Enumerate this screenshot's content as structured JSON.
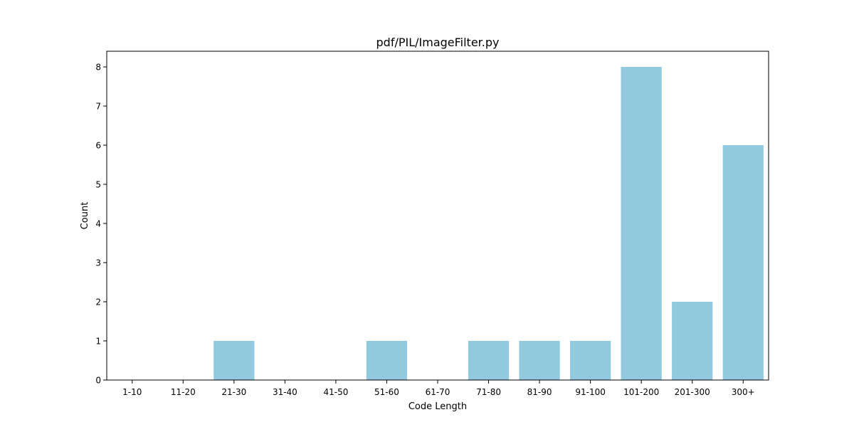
{
  "chart_data": {
    "type": "bar",
    "title": "pdf/PIL/ImageFilter.py",
    "xlabel": "Code Length",
    "ylabel": "Count",
    "categories": [
      "1-10",
      "11-20",
      "21-30",
      "31-40",
      "41-50",
      "51-60",
      "61-70",
      "71-80",
      "81-90",
      "91-100",
      "101-200",
      "201-300",
      "300+"
    ],
    "values": [
      0,
      0,
      1,
      0,
      0,
      1,
      0,
      1,
      1,
      1,
      8,
      2,
      6
    ],
    "ylim": [
      0,
      8.4
    ],
    "yticks": [
      0,
      1,
      2,
      3,
      4,
      5,
      6,
      7,
      8
    ],
    "grid": false,
    "legend": "none",
    "bar_color": "#92c9df"
  }
}
